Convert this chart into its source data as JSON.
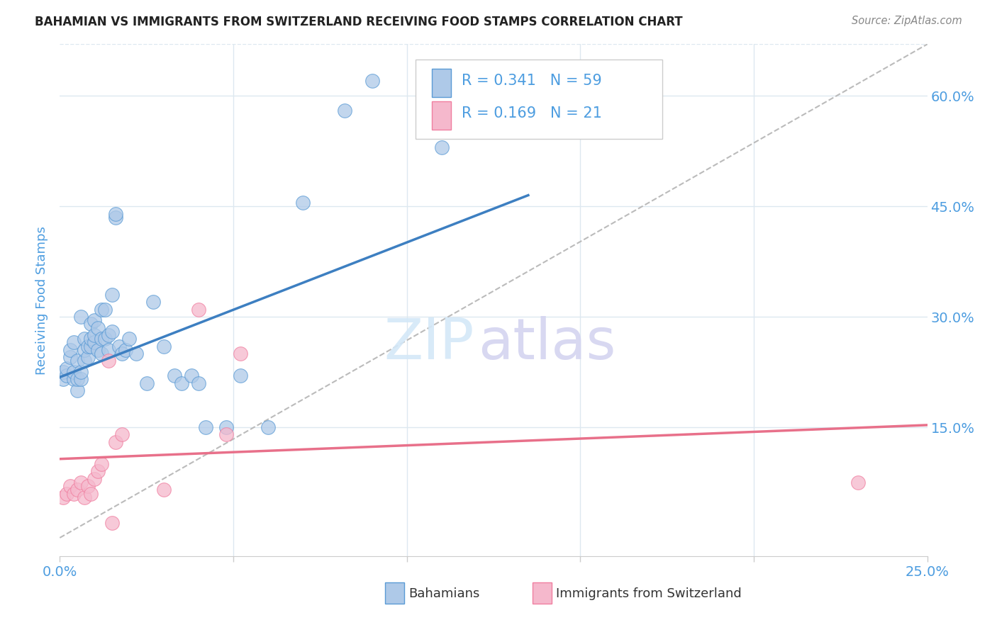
{
  "title": "BAHAMIAN VS IMMIGRANTS FROM SWITZERLAND RECEIVING FOOD STAMPS CORRELATION CHART",
  "source": "Source: ZipAtlas.com",
  "ylabel_label": "Receiving Food Stamps",
  "x_tick_labels_shown": [
    "0.0%",
    "25.0%"
  ],
  "x_tick_values_shown": [
    0.0,
    0.25
  ],
  "x_tick_minor_values": [
    0.05,
    0.1,
    0.15,
    0.2
  ],
  "y_tick_labels": [
    "15.0%",
    "30.0%",
    "45.0%",
    "60.0%"
  ],
  "y_tick_values": [
    0.15,
    0.3,
    0.45,
    0.6
  ],
  "xlim": [
    0.0,
    0.25
  ],
  "ylim": [
    -0.025,
    0.67
  ],
  "bahamian_color": "#aec9e8",
  "swiss_color": "#f5b8cc",
  "bahamian_edge_color": "#5b9bd5",
  "swiss_edge_color": "#f07fa0",
  "bahamian_line_color": "#3d7fc1",
  "swiss_line_color": "#e8708a",
  "dashed_line_color": "#bbbbbb",
  "R_bahamian": 0.341,
  "N_bahamian": 59,
  "R_swiss": 0.169,
  "N_swiss": 21,
  "legend_label_bahamian": "Bahamians",
  "legend_label_swiss": "Immigrants from Switzerland",
  "bah_line_x0": 0.0,
  "bah_line_y0": 0.218,
  "bah_line_x1": 0.135,
  "bah_line_y1": 0.465,
  "swiss_line_x0": 0.0,
  "swiss_line_y0": 0.107,
  "swiss_line_x1": 0.25,
  "swiss_line_y1": 0.153,
  "dash_line_x0": 0.0,
  "dash_line_y0": 0.0,
  "dash_line_x1": 0.25,
  "dash_line_y1": 0.67,
  "background_color": "#ffffff",
  "grid_color": "#dde8f0",
  "title_color": "#222222",
  "axis_tick_color": "#4d9de0",
  "watermark_zip_color": "#d4e8f8",
  "watermark_atlas_color": "#d4d4f0",
  "bah_x": [
    0.001,
    0.001,
    0.002,
    0.002,
    0.003,
    0.003,
    0.004,
    0.004,
    0.004,
    0.005,
    0.005,
    0.005,
    0.006,
    0.006,
    0.006,
    0.007,
    0.007,
    0.007,
    0.008,
    0.008,
    0.009,
    0.009,
    0.009,
    0.01,
    0.01,
    0.01,
    0.011,
    0.011,
    0.012,
    0.012,
    0.012,
    0.013,
    0.013,
    0.014,
    0.014,
    0.015,
    0.015,
    0.016,
    0.016,
    0.017,
    0.018,
    0.019,
    0.02,
    0.022,
    0.025,
    0.027,
    0.03,
    0.033,
    0.035,
    0.038,
    0.04,
    0.042,
    0.048,
    0.052,
    0.06,
    0.07,
    0.082,
    0.09,
    0.11
  ],
  "bah_y": [
    0.215,
    0.225,
    0.22,
    0.23,
    0.245,
    0.255,
    0.215,
    0.225,
    0.265,
    0.2,
    0.215,
    0.24,
    0.215,
    0.225,
    0.3,
    0.24,
    0.255,
    0.27,
    0.245,
    0.26,
    0.26,
    0.27,
    0.29,
    0.265,
    0.275,
    0.295,
    0.255,
    0.285,
    0.25,
    0.27,
    0.31,
    0.27,
    0.31,
    0.255,
    0.275,
    0.28,
    0.33,
    0.435,
    0.44,
    0.26,
    0.25,
    0.255,
    0.27,
    0.25,
    0.21,
    0.32,
    0.26,
    0.22,
    0.21,
    0.22,
    0.21,
    0.15,
    0.15,
    0.22,
    0.15,
    0.455,
    0.58,
    0.62,
    0.53
  ],
  "swiss_x": [
    0.001,
    0.002,
    0.003,
    0.004,
    0.005,
    0.006,
    0.007,
    0.008,
    0.009,
    0.01,
    0.011,
    0.012,
    0.014,
    0.016,
    0.018,
    0.048,
    0.052,
    0.23,
    0.015,
    0.03,
    0.04
  ],
  "swiss_y": [
    0.055,
    0.06,
    0.07,
    0.06,
    0.065,
    0.075,
    0.055,
    0.07,
    0.06,
    0.08,
    0.09,
    0.1,
    0.24,
    0.13,
    0.14,
    0.14,
    0.25,
    0.075,
    0.02,
    0.065,
    0.31
  ]
}
